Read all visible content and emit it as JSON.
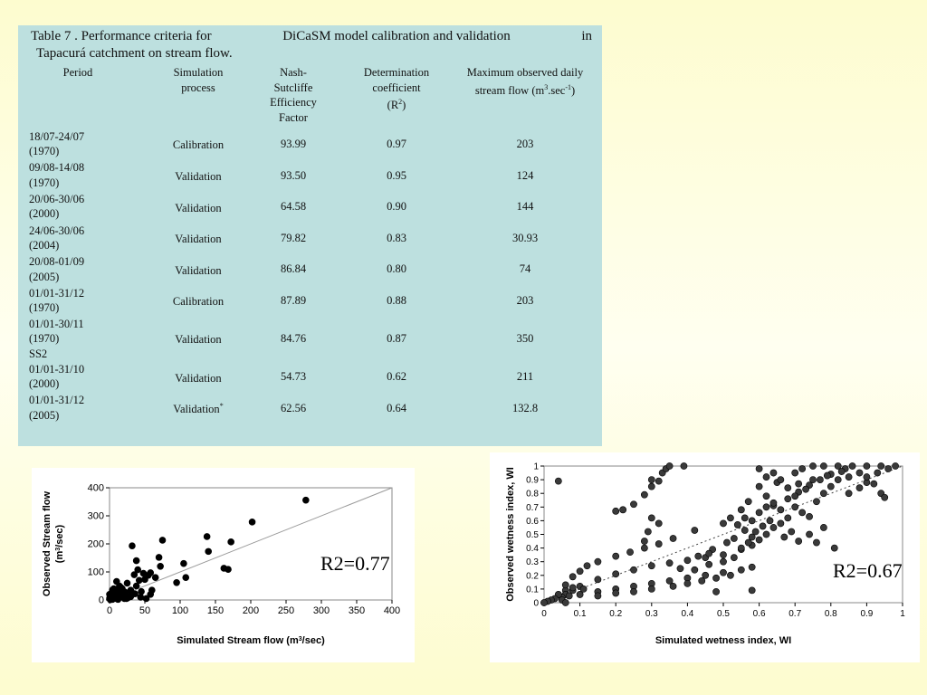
{
  "table": {
    "caption_line1_parts": [
      "Table   7 . Performance criteria for",
      "DiCaSM   model calibration and validation",
      "in"
    ],
    "caption_line2": "Tapacurá catchment on stream flow.",
    "headers": {
      "period": "Period",
      "simulation": [
        "Simulation",
        "process"
      ],
      "nse": [
        "Nash-",
        "Sutcliffe",
        "Efficiency",
        "Factor"
      ],
      "r2": [
        "Determination",
        "coefficient",
        "(R",
        "2",
        ")"
      ],
      "maxflow": [
        "Maximum observed daily",
        "stream flow  (m",
        "3",
        ".sec",
        "-1",
        ")"
      ]
    },
    "rows": [
      {
        "period": [
          "18/07-24/07",
          "(1970)"
        ],
        "process": "Calibration",
        "sup": "",
        "nse": "93.99",
        "r2": "0.97",
        "max": "203"
      },
      {
        "period": [
          "09/08-14/08",
          "(1970)"
        ],
        "process": "Validation",
        "sup": "",
        "nse": "93.50",
        "r2": "0.95",
        "max": "124"
      },
      {
        "period": [
          "20/06-30/06",
          "(2000)"
        ],
        "process": "Validation",
        "sup": "",
        "nse": "64.58",
        "r2": "0.90",
        "max": "144"
      },
      {
        "period": [
          "24/06-30/06",
          "(2004)"
        ],
        "process": "Validation",
        "sup": "",
        "nse": "79.82",
        "r2": "0.83",
        "max": "30.93"
      },
      {
        "period": [
          "20/08-01/09",
          "(2005)"
        ],
        "process": "Validation",
        "sup": "",
        "nse": "86.84",
        "r2": "0.80",
        "max": "74"
      },
      {
        "period": [
          "01/01-31/12",
          "(1970)"
        ],
        "process": "Calibration",
        "sup": "",
        "nse": "87.89",
        "r2": "0.88",
        "max": "203"
      },
      {
        "period": [
          "01/01-30/11",
          "(1970)",
          "SS2"
        ],
        "process": "Validation",
        "sup": "",
        "nse": "84.76",
        "r2": "0.87",
        "max": "350"
      },
      {
        "period": [
          "01/01-31/10",
          "(2000)"
        ],
        "process": "Validation",
        "sup": "",
        "nse": "54.73",
        "r2": "0.62",
        "max": "211"
      },
      {
        "period": [
          "01/01-31/12",
          "(2005)"
        ],
        "process": "Validation",
        "sup": "*",
        "nse": "62.56",
        "r2": "0.64",
        "max": "132.8"
      }
    ]
  },
  "chart_data": [
    {
      "type": "scatter",
      "xlabel": [
        "Simulated Stream flow (m",
        "3",
        "/sec)"
      ],
      "ylabel": [
        "Observed Stream flow",
        "(m",
        "3",
        "/sec)"
      ],
      "xlim": [
        0,
        400
      ],
      "ylim": [
        0,
        400
      ],
      "xticks": [
        "0",
        "50",
        "100",
        "150",
        "200",
        "250",
        "300",
        "350",
        "400"
      ],
      "yticks": [
        "0",
        "100",
        "200",
        "300",
        "400"
      ],
      "annotation": "R2=0.77",
      "trendline": [
        [
          0,
          0
        ],
        [
          400,
          400
        ]
      ],
      "color": "#000000",
      "points": [
        [
          278,
          356
        ],
        [
          202,
          278
        ],
        [
          172,
          207
        ],
        [
          138,
          226
        ],
        [
          140,
          173
        ],
        [
          162,
          113
        ],
        [
          168,
          109
        ],
        [
          105,
          130
        ],
        [
          108,
          80
        ],
        [
          95,
          62
        ],
        [
          75,
          213
        ],
        [
          70,
          152
        ],
        [
          72,
          120
        ],
        [
          65,
          80
        ],
        [
          58,
          97
        ],
        [
          55,
          88
        ],
        [
          50,
          73
        ],
        [
          48,
          95
        ],
        [
          60,
          35
        ],
        [
          58,
          20
        ],
        [
          32,
          193
        ],
        [
          38,
          140
        ],
        [
          40,
          108
        ],
        [
          35,
          90
        ],
        [
          42,
          70
        ],
        [
          38,
          50
        ],
        [
          30,
          35
        ],
        [
          28,
          15
        ],
        [
          25,
          60
        ],
        [
          22,
          28
        ],
        [
          18,
          40
        ],
        [
          15,
          25
        ],
        [
          12,
          18
        ],
        [
          10,
          66
        ],
        [
          10,
          5
        ],
        [
          8,
          30
        ],
        [
          6,
          12
        ],
        [
          5,
          20
        ],
        [
          4,
          35
        ],
        [
          3,
          8
        ],
        [
          2,
          3
        ],
        [
          1,
          10
        ],
        [
          1,
          1
        ],
        [
          14,
          50
        ],
        [
          20,
          10
        ],
        [
          24,
          5
        ],
        [
          16,
          45
        ],
        [
          11,
          35
        ],
        [
          7,
          15
        ],
        [
          3,
          25
        ],
        [
          6,
          40
        ],
        [
          9,
          22
        ],
        [
          13,
          8
        ],
        [
          17,
          12
        ],
        [
          19,
          20
        ],
        [
          21,
          5
        ],
        [
          26,
          8
        ],
        [
          45,
          30
        ],
        [
          44,
          10
        ],
        [
          52,
          5
        ],
        [
          36,
          22
        ],
        [
          30,
          12
        ],
        [
          2,
          15
        ],
        [
          4,
          2
        ],
        [
          0,
          6
        ],
        [
          0,
          20
        ],
        [
          12,
          2
        ],
        [
          8,
          6
        ]
      ]
    },
    {
      "type": "scatter",
      "xlabel": "Simulated wetness index, WI",
      "ylabel": "Observed wetness index, WI",
      "xlim": [
        0,
        1
      ],
      "ylim": [
        0,
        1
      ],
      "xticks": [
        "0",
        "0.1",
        "0.2",
        "0.3",
        "0.4",
        "0.5",
        "0.6",
        "0.7",
        "0.8",
        "0.9",
        "1"
      ],
      "yticks": [
        "0",
        "0.1",
        "0.2",
        "0.3",
        "0.4",
        "0.5",
        "0.6",
        "0.7",
        "0.8",
        "0.9",
        "1"
      ],
      "annotation": "R2=0.67",
      "trendline": [
        [
          0,
          0
        ],
        [
          1,
          1
        ]
      ],
      "color": "#3a3a3a",
      "series": [
        {
          "values": [
            [
              0.04,
              0.89
            ],
            [
              0.2,
              0.67
            ],
            [
              0.22,
              0.68
            ],
            [
              0.25,
              0.72
            ],
            [
              0.28,
              0.79
            ],
            [
              0.3,
              0.85
            ],
            [
              0.32,
              0.89
            ],
            [
              0.33,
              0.95
            ],
            [
              0.34,
              0.98
            ],
            [
              0.35,
              1.0
            ],
            [
              0.39,
              1.0
            ],
            [
              0.3,
              0.9
            ],
            [
              0.3,
              0.62
            ],
            [
              0.29,
              0.52
            ],
            [
              0.28,
              0.45
            ],
            [
              0.32,
              0.58
            ],
            [
              0.06,
              0.09
            ],
            [
              0.06,
              0.13
            ],
            [
              0.08,
              0.19
            ],
            [
              0.1,
              0.23
            ],
            [
              0.12,
              0.27
            ],
            [
              0.15,
              0.3
            ],
            [
              0.2,
              0.34
            ],
            [
              0.24,
              0.37
            ],
            [
              0.28,
              0.4
            ],
            [
              0.32,
              0.43
            ],
            [
              0.36,
              0.47
            ],
            [
              0.42,
              0.53
            ],
            [
              0.5,
              0.58
            ],
            [
              0.56,
              0.62
            ],
            [
              0.6,
              0.66
            ],
            [
              0.64,
              0.71
            ],
            [
              0.68,
              0.76
            ],
            [
              0.71,
              0.81
            ],
            [
              0.74,
              0.86
            ],
            [
              0.77,
              0.9
            ],
            [
              0.8,
              0.94
            ],
            [
              0.84,
              0.98
            ],
            [
              0.06,
              0.06
            ],
            [
              0.1,
              0.12
            ],
            [
              0.15,
              0.17
            ],
            [
              0.2,
              0.21
            ],
            [
              0.25,
              0.24
            ],
            [
              0.3,
              0.27
            ],
            [
              0.35,
              0.29
            ],
            [
              0.4,
              0.31
            ],
            [
              0.45,
              0.33
            ],
            [
              0.5,
              0.35
            ],
            [
              0.55,
              0.39
            ],
            [
              0.58,
              0.42
            ],
            [
              0.1,
              0.06
            ],
            [
              0.15,
              0.08
            ],
            [
              0.2,
              0.1
            ],
            [
              0.25,
              0.12
            ],
            [
              0.3,
              0.14
            ],
            [
              0.35,
              0.16
            ],
            [
              0.4,
              0.18
            ],
            [
              0.45,
              0.2
            ],
            [
              0.5,
              0.22
            ],
            [
              0.55,
              0.24
            ],
            [
              0.58,
              0.26
            ],
            [
              0.15,
              0.05
            ],
            [
              0.2,
              0.07
            ],
            [
              0.25,
              0.08
            ],
            [
              0.3,
              0.1
            ],
            [
              0.36,
              0.12
            ],
            [
              0.4,
              0.14
            ],
            [
              0.44,
              0.16
            ],
            [
              0.48,
              0.18
            ],
            [
              0.52,
              0.2
            ],
            [
              0.48,
              0.08
            ],
            [
              0.58,
              0.09
            ],
            [
              0.05,
              0.04
            ],
            [
              0.05,
              0.02
            ],
            [
              0.04,
              0.06
            ],
            [
              0.03,
              0.03
            ],
            [
              0.07,
              0.05
            ],
            [
              0.08,
              0.09
            ],
            [
              0.08,
              0.11
            ],
            [
              0.11,
              0.1
            ],
            [
              0.02,
              0.02
            ],
            [
              0.01,
              0.01
            ],
            [
              0.06,
              0.0
            ],
            [
              0.0,
              0.0
            ],
            [
              0.65,
              0.88
            ],
            [
              0.7,
              0.95
            ],
            [
              0.72,
              0.98
            ],
            [
              0.75,
              1.0
            ],
            [
              0.78,
              1.0
            ],
            [
              0.82,
              1.0
            ],
            [
              0.86,
              1.0
            ],
            [
              0.9,
              1.0
            ],
            [
              0.94,
              1.0
            ],
            [
              0.98,
              1.0
            ],
            [
              0.6,
              0.98
            ],
            [
              0.62,
              0.92
            ],
            [
              0.6,
              0.85
            ],
            [
              0.62,
              0.78
            ],
            [
              0.64,
              0.73
            ],
            [
              0.66,
              0.68
            ],
            [
              0.68,
              0.62
            ],
            [
              0.66,
              0.58
            ],
            [
              0.64,
              0.55
            ],
            [
              0.62,
              0.5
            ],
            [
              0.6,
              0.46
            ],
            [
              0.58,
              0.48
            ],
            [
              0.56,
              0.53
            ],
            [
              0.54,
              0.57
            ],
            [
              0.52,
              0.62
            ],
            [
              0.55,
              0.68
            ],
            [
              0.57,
              0.74
            ],
            [
              0.7,
              0.7
            ],
            [
              0.72,
              0.66
            ],
            [
              0.74,
              0.63
            ],
            [
              0.76,
              0.74
            ],
            [
              0.78,
              0.8
            ],
            [
              0.8,
              0.85
            ],
            [
              0.82,
              0.9
            ],
            [
              0.85,
              0.92
            ],
            [
              0.88,
              0.95
            ],
            [
              0.75,
              0.9
            ],
            [
              0.73,
              0.83
            ],
            [
              0.7,
              0.78
            ],
            [
              0.68,
              0.84
            ],
            [
              0.66,
              0.9
            ],
            [
              0.64,
              0.95
            ],
            [
              0.76,
              0.44
            ],
            [
              0.81,
              0.4
            ],
            [
              0.78,
              0.55
            ],
            [
              0.74,
              0.5
            ],
            [
              0.71,
              0.45
            ],
            [
              0.69,
              0.52
            ],
            [
              0.67,
              0.48
            ],
            [
              0.63,
              0.6
            ],
            [
              0.61,
              0.56
            ],
            [
              0.59,
              0.52
            ],
            [
              0.57,
              0.44
            ],
            [
              0.55,
              0.4
            ],
            [
              0.85,
              0.8
            ],
            [
              0.88,
              0.84
            ],
            [
              0.9,
              0.88
            ],
            [
              0.92,
              0.87
            ],
            [
              0.94,
              0.8
            ],
            [
              0.95,
              0.77
            ],
            [
              0.9,
              0.92
            ],
            [
              0.93,
              0.95
            ],
            [
              0.96,
              0.98
            ],
            [
              0.83,
              0.96
            ],
            [
              0.79,
              0.93
            ],
            [
              0.71,
              0.87
            ],
            [
              0.62,
              0.7
            ],
            [
              0.58,
              0.6
            ],
            [
              0.53,
              0.47
            ],
            [
              0.51,
              0.44
            ],
            [
              0.47,
              0.39
            ],
            [
              0.46,
              0.36
            ],
            [
              0.43,
              0.34
            ],
            [
              0.38,
              0.25
            ],
            [
              0.42,
              0.24
            ],
            [
              0.46,
              0.28
            ],
            [
              0.5,
              0.3
            ],
            [
              0.53,
              0.33
            ]
          ]
        }
      ]
    }
  ]
}
